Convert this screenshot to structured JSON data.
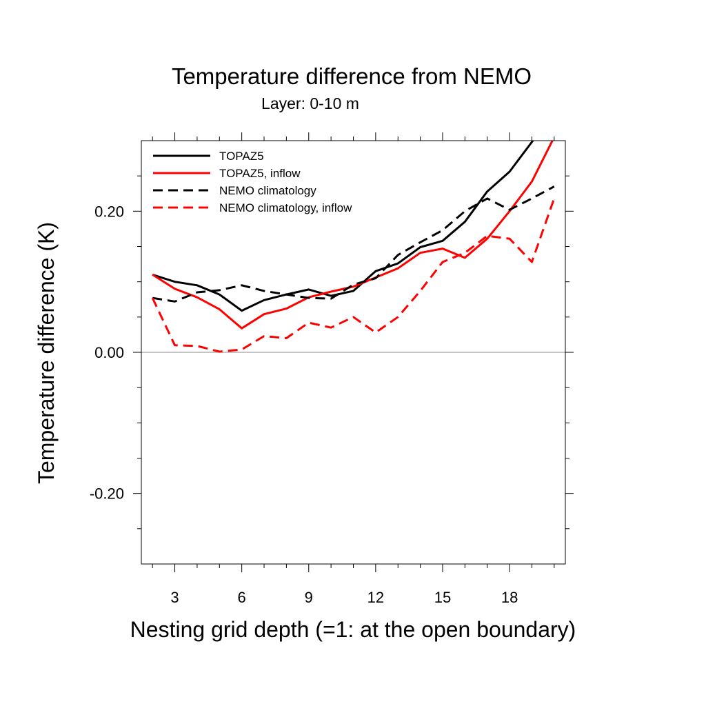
{
  "chart_data": {
    "type": "line",
    "title": "Temperature difference from NEMO",
    "subtitle": "Layer: 0-10 m",
    "xlabel": "Nesting grid depth (=1: at the open boundary)",
    "ylabel": "Temperature difference (K)",
    "xlim": [
      1.5,
      20.5
    ],
    "ylim": [
      -0.3,
      0.3
    ],
    "x_major_ticks": [
      3,
      6,
      9,
      12,
      15,
      18
    ],
    "x_tick_labels": [
      "3",
      "6",
      "9",
      "12",
      "15",
      "18"
    ],
    "x_minor_ticks": [
      2,
      4,
      5,
      7,
      8,
      10,
      11,
      13,
      14,
      16,
      17,
      19,
      20
    ],
    "y_major_ticks": [
      -0.2,
      0.0,
      0.2
    ],
    "y_tick_labels": [
      "-0.20",
      "0.00",
      "0.20"
    ],
    "y_minor_ticks": [
      -0.25,
      -0.15,
      -0.1,
      -0.05,
      0.05,
      0.1,
      0.15,
      0.25
    ],
    "zero_reference_line": true,
    "grid": false,
    "legend_position": "top-left",
    "x": [
      2,
      3,
      4,
      5,
      6,
      7,
      8,
      9,
      10,
      11,
      12,
      13,
      14,
      15,
      16,
      17,
      18,
      19,
      20
    ],
    "series": [
      {
        "name": "TOPAZ5",
        "color": "#000000",
        "dash": "solid",
        "values": [
          0.11,
          0.1,
          0.095,
          0.082,
          0.059,
          0.074,
          0.082,
          0.089,
          0.08,
          0.087,
          0.115,
          0.126,
          0.149,
          0.158,
          0.185,
          0.228,
          0.256,
          0.298,
          0.34
        ]
      },
      {
        "name": "TOPAZ5, inflow",
        "color": "#ff0000",
        "dash": "solid",
        "values": [
          0.11,
          0.09,
          0.078,
          0.061,
          0.034,
          0.054,
          0.062,
          0.078,
          0.086,
          0.093,
          0.106,
          0.119,
          0.141,
          0.147,
          0.134,
          0.161,
          0.2,
          0.242,
          0.305
        ]
      },
      {
        "name": "NEMO climatology",
        "color": "#000000",
        "dash": "dashed",
        "values": [
          0.077,
          0.072,
          0.085,
          0.088,
          0.095,
          0.087,
          0.082,
          0.077,
          0.076,
          0.096,
          0.105,
          0.138,
          0.156,
          0.173,
          0.2,
          0.218,
          0.202,
          0.218,
          0.235
        ]
      },
      {
        "name": "NEMO climatology, inflow",
        "color": "#ff0000",
        "dash": "dashed",
        "values": [
          0.077,
          0.01,
          0.009,
          0.001,
          0.004,
          0.023,
          0.02,
          0.042,
          0.035,
          0.05,
          0.028,
          0.05,
          0.087,
          0.128,
          0.141,
          0.165,
          0.161,
          0.128,
          0.218
        ]
      }
    ]
  }
}
